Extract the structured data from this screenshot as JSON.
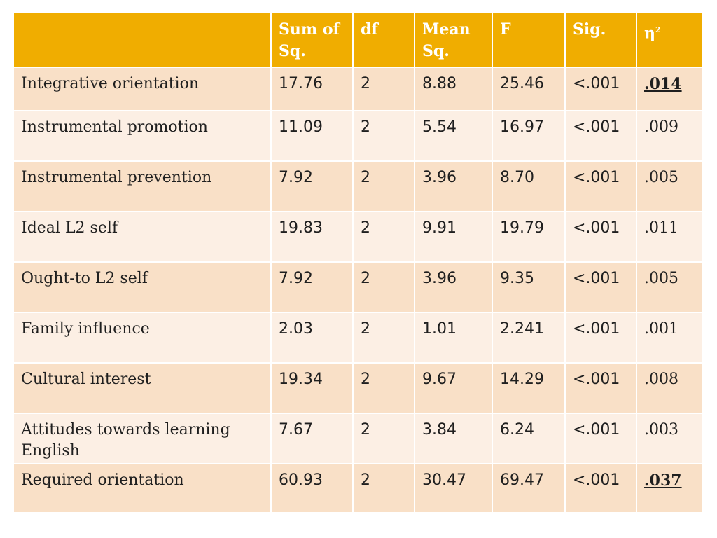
{
  "table": {
    "headers": {
      "label": "",
      "sum_sq": "Sum of Sq.",
      "df": "df",
      "mean_sq": "Mean Sq.",
      "f": "F",
      "sig": "Sig.",
      "eta_symbol": "η",
      "eta_superscript": "2"
    },
    "rows": [
      {
        "label": "Integrative orientation",
        "sum_sq": "17.76",
        "df": "2",
        "mean_sq": "8.88",
        "f": "25.46",
        "sig": "<.001",
        "eta": ".014",
        "eta_emphasized": true
      },
      {
        "label": "Instrumental promotion",
        "sum_sq": "11.09",
        "df": "2",
        "mean_sq": "5.54",
        "f": "16.97",
        "sig": "<.001",
        "eta": ".009",
        "eta_emphasized": false
      },
      {
        "label": "Instrumental prevention",
        "sum_sq": "7.92",
        "df": "2",
        "mean_sq": "3.96",
        "f": "8.70",
        "sig": "<.001",
        "eta": ".005",
        "eta_emphasized": false
      },
      {
        "label": "Ideal L2 self",
        "sum_sq": "19.83",
        "df": "2",
        "mean_sq": "9.91",
        "f": "19.79",
        "sig": "<.001",
        "eta": ".011",
        "eta_emphasized": false
      },
      {
        "label": "Ought-to L2 self",
        "sum_sq": "7.92",
        "df": "2",
        "mean_sq": "3.96",
        "f": "9.35",
        "sig": "<.001",
        "eta": ".005",
        "eta_emphasized": false
      },
      {
        "label": "Family influence",
        "sum_sq": "2.03",
        "df": "2",
        "mean_sq": "1.01",
        "f": "2.241",
        "sig": "<.001",
        "eta": ".001",
        "eta_emphasized": false
      },
      {
        "label": "Cultural interest",
        "sum_sq": "19.34",
        "df": "2",
        "mean_sq": "9.67",
        "f": "14.29",
        "sig": "<.001",
        "eta": ".008",
        "eta_emphasized": false
      },
      {
        "label": "Attitudes towards learning English",
        "sum_sq": "7.67",
        "df": "2",
        "mean_sq": "3.84",
        "f": "6.24",
        "sig": "<.001",
        "eta": ".003",
        "eta_emphasized": false
      },
      {
        "label": "Required orientation",
        "sum_sq": "60.93",
        "df": "2",
        "mean_sq": "30.47",
        "f": "69.47",
        "sig": "<.001",
        "eta": ".037",
        "eta_emphasized": true
      }
    ]
  },
  "colors": {
    "header_bg": "#f0ad00",
    "row_dark": "#f9e0c7",
    "row_light": "#fcefe4"
  }
}
